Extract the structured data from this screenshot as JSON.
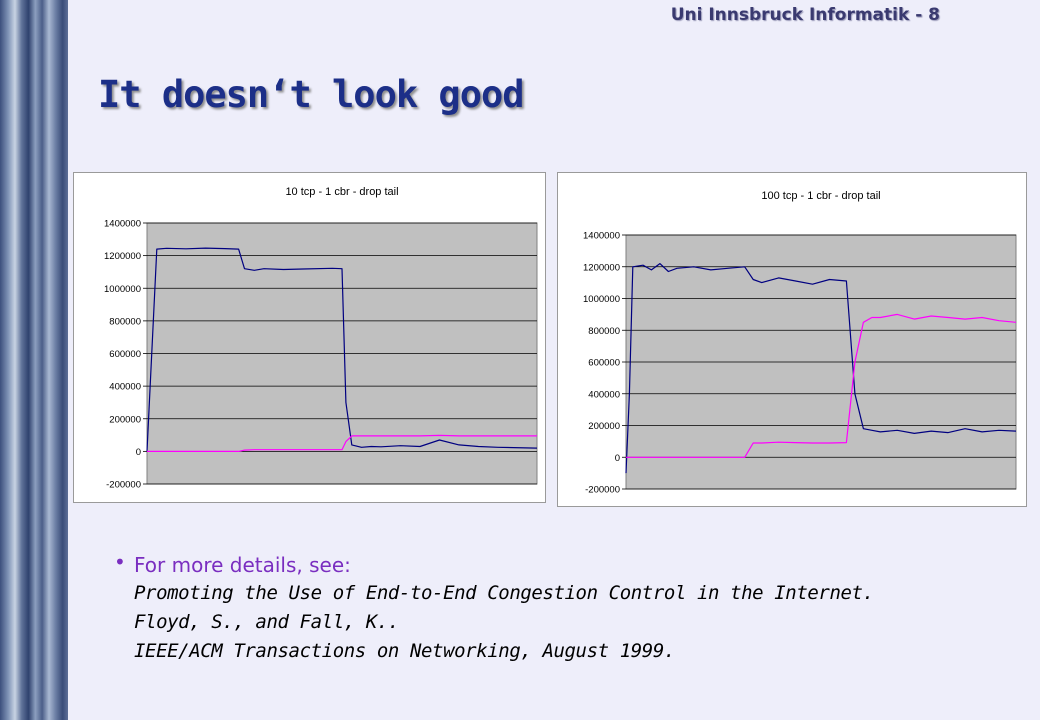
{
  "header": {
    "label": "Uni Innsbruck Informatik - 8"
  },
  "slide": {
    "title": "It doesn‘t look good"
  },
  "bullet": {
    "lead": "For more details, see:",
    "reference_lines": [
      "Promoting the Use of End-to-End Congestion Control in the Internet.",
      "Floyd, S., and Fall, K..",
      "IEEE/ACM Transactions on Networking, August 1999."
    ]
  },
  "colors": {
    "plot_background": "#c0c0c0",
    "tcp_series": "#000080",
    "cbr_series": "#ff00ff",
    "title_color": "#1c2f88",
    "bullet_color": "#7a2ec0"
  },
  "chart_data": [
    {
      "type": "line",
      "title": "10 tcp - 1 cbr - drop tail",
      "xlabel": "",
      "ylabel": "",
      "ylim": [
        -200000,
        1400000
      ],
      "yticks": [
        1400000,
        1200000,
        1000000,
        800000,
        600000,
        400000,
        200000,
        0,
        -200000
      ],
      "grid": true,
      "legend": "none",
      "x": [
        0,
        5,
        10,
        20,
        30,
        40,
        47,
        50,
        55,
        60,
        70,
        80,
        95,
        100,
        102,
        105,
        110,
        115,
        120,
        130,
        140,
        150,
        160,
        170,
        180,
        200
      ],
      "series": [
        {
          "values": [
            0,
            1240000,
            1245000,
            1242000,
            1246000,
            1243000,
            1240000,
            1120000,
            1110000,
            1120000,
            1115000,
            1118000,
            1122000,
            1120000,
            300000,
            40000,
            25000,
            30000,
            28000,
            35000,
            30000,
            70000,
            40000,
            30000,
            25000,
            20000
          ]
        },
        {
          "values": [
            0,
            0,
            0,
            0,
            0,
            0,
            0,
            8000,
            10000,
            10000,
            10000,
            10000,
            10000,
            10000,
            60000,
            95000,
            95000,
            95000,
            95000,
            95000,
            95000,
            98000,
            95000,
            95000,
            95000,
            95000
          ]
        }
      ]
    },
    {
      "type": "line",
      "title": "100 tcp - 1 cbr - drop tail",
      "xlabel": "",
      "ylabel": "",
      "ylim": [
        -200000,
        1400000
      ],
      "yticks": [
        1400000,
        1200000,
        1000000,
        800000,
        600000,
        400000,
        200000,
        0,
        -200000
      ],
      "grid": true,
      "legend": "none",
      "x": [
        0,
        2,
        4,
        10,
        15,
        20,
        25,
        30,
        40,
        50,
        60,
        70,
        75,
        80,
        90,
        100,
        110,
        120,
        130,
        135,
        140,
        145,
        150,
        160,
        170,
        180,
        190,
        200,
        210,
        220,
        230
      ],
      "series": [
        {
          "values": [
            -100000,
            400000,
            1200000,
            1210000,
            1180000,
            1220000,
            1170000,
            1190000,
            1200000,
            1180000,
            1190000,
            1200000,
            1120000,
            1100000,
            1130000,
            1110000,
            1090000,
            1120000,
            1110000,
            400000,
            180000,
            170000,
            160000,
            170000,
            150000,
            165000,
            155000,
            180000,
            160000,
            170000,
            165000
          ]
        },
        {
          "values": [
            0,
            0,
            0,
            0,
            0,
            0,
            0,
            0,
            0,
            0,
            0,
            0,
            90000,
            90000,
            95000,
            92000,
            90000,
            90000,
            92000,
            600000,
            850000,
            880000,
            880000,
            900000,
            870000,
            890000,
            880000,
            870000,
            880000,
            860000,
            850000
          ]
        }
      ]
    }
  ]
}
